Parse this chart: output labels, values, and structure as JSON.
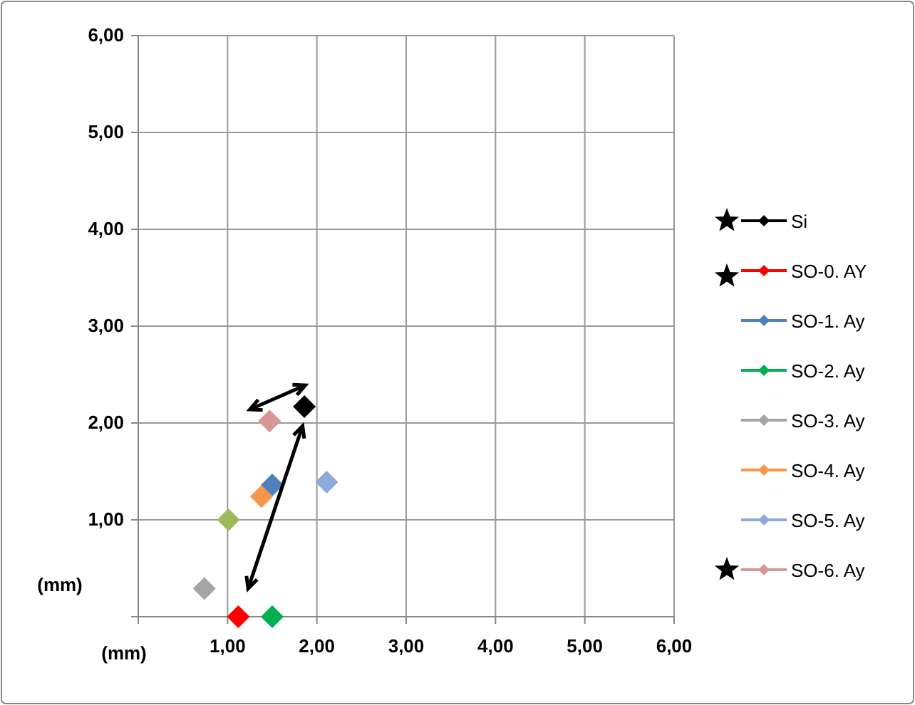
{
  "chart_data": {
    "type": "scatter",
    "xlabel": "(mm)",
    "ylabel": "(mm)",
    "xlim": [
      0,
      6
    ],
    "ylim": [
      0,
      6
    ],
    "xticks": [
      {
        "value": 0,
        "label": null
      },
      {
        "value": 1,
        "label": "1,00"
      },
      {
        "value": 2,
        "label": "2,00"
      },
      {
        "value": 3,
        "label": "3,00"
      },
      {
        "value": 4,
        "label": "4,00"
      },
      {
        "value": 5,
        "label": "5,00"
      },
      {
        "value": 6,
        "label": "6,00"
      }
    ],
    "yticks": [
      {
        "value": 0,
        "label": null
      },
      {
        "value": 1,
        "label": "1,00"
      },
      {
        "value": 2,
        "label": "2,00"
      },
      {
        "value": 3,
        "label": "3,00"
      },
      {
        "value": 4,
        "label": "4,00"
      },
      {
        "value": 5,
        "label": "5,00"
      },
      {
        "value": 6,
        "label": "6,00"
      }
    ],
    "grid": true,
    "legend": "right",
    "marker": "diamond",
    "series": [
      {
        "name": "Si",
        "color": "#000000",
        "x": [
          1.86
        ],
        "values": [
          2.17
        ]
      },
      {
        "name": "SO-0. AY",
        "color": "#ff0000",
        "x": [
          1.12
        ],
        "values": [
          0
        ]
      },
      {
        "name": "SO-1. Ay",
        "color": "#4f81bd",
        "x": [
          1.5
        ],
        "values": [
          1.36
        ]
      },
      {
        "name": "SO-2. Ay",
        "color": "#00b050",
        "x": [
          1.5
        ],
        "values": [
          0
        ]
      },
      {
        "name": "SO-3. Ay",
        "color": "#a5a5a5",
        "x": [
          0.74
        ],
        "values": [
          0.29
        ]
      },
      {
        "name": "SO-4. Ay",
        "color": "#f79646",
        "x": [
          1.38
        ],
        "values": [
          1.24
        ]
      },
      {
        "name": "SO-5. Ay",
        "color": "#8eaadb",
        "x": [
          2.11
        ],
        "values": [
          1.39
        ]
      },
      {
        "name": "SO-6. Ay",
        "color": "#d99694",
        "x": [
          1.47
        ],
        "values": [
          2.02
        ]
      },
      {
        "color": "#9bbb59",
        "x": [
          1.01
        ],
        "values": [
          1.0
        ]
      }
    ]
  }
}
